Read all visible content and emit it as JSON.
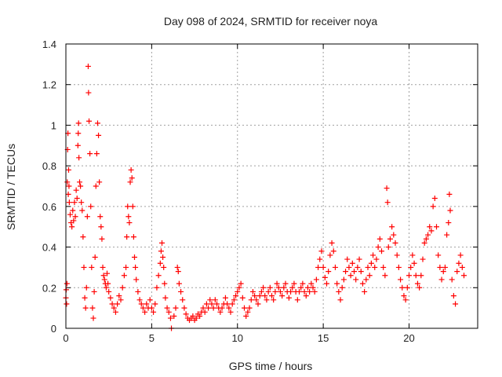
{
  "chart_data": {
    "type": "scatter",
    "title": "Day 098 of 2024, SRMTID for receiver noya",
    "xlabel": "GPS time / hours",
    "ylabel": "SRMTID / TECUs",
    "xlim": [
      0,
      24
    ],
    "ylim": [
      0,
      1.4
    ],
    "xticks": [
      0,
      5,
      10,
      15,
      20
    ],
    "xtick_labels": [
      "0",
      "5",
      "10",
      "15",
      "20"
    ],
    "yticks": [
      0,
      0.2,
      0.4,
      0.6,
      0.8,
      1.0,
      1.2,
      1.4
    ],
    "ytick_labels": [
      "0",
      "0.2",
      "0.4",
      "0.6",
      "0.8",
      "1",
      "1.2",
      "1.4"
    ],
    "grid": true,
    "marker": "+",
    "series_color": "#ff0000",
    "series": [
      {
        "name": "noya",
        "points": [
          [
            0.0,
            0.15
          ],
          [
            0.02,
            0.19
          ],
          [
            0.04,
            0.12
          ],
          [
            0.06,
            0.22
          ],
          [
            0.08,
            0.72
          ],
          [
            0.1,
            0.88
          ],
          [
            0.12,
            0.96
          ],
          [
            0.14,
            0.66
          ],
          [
            0.16,
            0.78
          ],
          [
            0.18,
            0.7
          ],
          [
            0.2,
            0.62
          ],
          [
            0.25,
            0.56
          ],
          [
            0.3,
            0.52
          ],
          [
            0.35,
            0.5
          ],
          [
            0.4,
            0.58
          ],
          [
            0.45,
            0.53
          ],
          [
            0.5,
            0.62
          ],
          [
            0.55,
            0.55
          ],
          [
            0.6,
            0.68
          ],
          [
            0.65,
            0.64
          ],
          [
            0.7,
            0.9
          ],
          [
            0.72,
            0.96
          ],
          [
            0.74,
            1.01
          ],
          [
            0.76,
            0.84
          ],
          [
            0.8,
            0.72
          ],
          [
            0.85,
            0.7
          ],
          [
            0.9,
            0.62
          ],
          [
            0.95,
            0.58
          ],
          [
            1.0,
            0.45
          ],
          [
            1.05,
            0.3
          ],
          [
            1.1,
            0.15
          ],
          [
            1.15,
            0.1
          ],
          [
            1.2,
            0.2
          ],
          [
            1.25,
            0.55
          ],
          [
            1.3,
            1.29
          ],
          [
            1.32,
            1.16
          ],
          [
            1.35,
            1.02
          ],
          [
            1.4,
            0.86
          ],
          [
            1.45,
            0.6
          ],
          [
            1.5,
            0.3
          ],
          [
            1.55,
            0.1
          ],
          [
            1.6,
            0.05
          ],
          [
            1.65,
            0.18
          ],
          [
            1.7,
            0.35
          ],
          [
            1.75,
            0.7
          ],
          [
            1.8,
            0.86
          ],
          [
            1.85,
            1.01
          ],
          [
            1.9,
            0.95
          ],
          [
            1.95,
            0.72
          ],
          [
            2.0,
            0.55
          ],
          [
            2.05,
            0.5
          ],
          [
            2.1,
            0.44
          ],
          [
            2.15,
            0.3
          ],
          [
            2.2,
            0.26
          ],
          [
            2.25,
            0.24
          ],
          [
            2.3,
            0.22
          ],
          [
            2.35,
            0.2
          ],
          [
            2.4,
            0.27
          ],
          [
            2.45,
            0.22
          ],
          [
            2.5,
            0.18
          ],
          [
            2.6,
            0.15
          ],
          [
            2.7,
            0.12
          ],
          [
            2.8,
            0.1
          ],
          [
            2.9,
            0.08
          ],
          [
            3.0,
            0.12
          ],
          [
            3.1,
            0.16
          ],
          [
            3.2,
            0.14
          ],
          [
            3.3,
            0.2
          ],
          [
            3.4,
            0.26
          ],
          [
            3.5,
            0.3
          ],
          [
            3.55,
            0.45
          ],
          [
            3.6,
            0.6
          ],
          [
            3.65,
            0.55
          ],
          [
            3.7,
            0.52
          ],
          [
            3.75,
            0.72
          ],
          [
            3.8,
            0.78
          ],
          [
            3.85,
            0.74
          ],
          [
            3.9,
            0.6
          ],
          [
            3.95,
            0.45
          ],
          [
            4.0,
            0.35
          ],
          [
            4.05,
            0.3
          ],
          [
            4.1,
            0.24
          ],
          [
            4.2,
            0.18
          ],
          [
            4.3,
            0.14
          ],
          [
            4.4,
            0.12
          ],
          [
            4.5,
            0.1
          ],
          [
            4.6,
            0.08
          ],
          [
            4.7,
            0.12
          ],
          [
            4.8,
            0.1
          ],
          [
            4.9,
            0.14
          ],
          [
            5.0,
            0.1
          ],
          [
            5.1,
            0.08
          ],
          [
            5.2,
            0.12
          ],
          [
            5.3,
            0.2
          ],
          [
            5.4,
            0.26
          ],
          [
            5.5,
            0.32
          ],
          [
            5.55,
            0.38
          ],
          [
            5.6,
            0.42
          ],
          [
            5.65,
            0.35
          ],
          [
            5.7,
            0.3
          ],
          [
            5.75,
            0.22
          ],
          [
            5.8,
            0.15
          ],
          [
            5.9,
            0.1
          ],
          [
            6.0,
            0.08
          ],
          [
            6.1,
            0.05
          ],
          [
            6.15,
            0.0
          ],
          [
            6.3,
            0.06
          ],
          [
            6.4,
            0.1
          ],
          [
            6.5,
            0.3
          ],
          [
            6.55,
            0.28
          ],
          [
            6.6,
            0.22
          ],
          [
            6.7,
            0.18
          ],
          [
            6.8,
            0.14
          ],
          [
            6.9,
            0.1
          ],
          [
            7.0,
            0.07
          ],
          [
            7.1,
            0.05
          ],
          [
            7.2,
            0.04
          ],
          [
            7.3,
            0.05
          ],
          [
            7.4,
            0.06
          ],
          [
            7.5,
            0.04
          ],
          [
            7.6,
            0.05
          ],
          [
            7.7,
            0.07
          ],
          [
            7.8,
            0.06
          ],
          [
            7.9,
            0.08
          ],
          [
            8.0,
            0.1
          ],
          [
            8.1,
            0.08
          ],
          [
            8.2,
            0.12
          ],
          [
            8.3,
            0.1
          ],
          [
            8.4,
            0.14
          ],
          [
            8.5,
            0.12
          ],
          [
            8.6,
            0.1
          ],
          [
            8.7,
            0.14
          ],
          [
            8.8,
            0.12
          ],
          [
            8.9,
            0.1
          ],
          [
            9.0,
            0.08
          ],
          [
            9.1,
            0.1
          ],
          [
            9.2,
            0.12
          ],
          [
            9.3,
            0.15
          ],
          [
            9.4,
            0.12
          ],
          [
            9.5,
            0.1
          ],
          [
            9.6,
            0.08
          ],
          [
            9.7,
            0.12
          ],
          [
            9.8,
            0.14
          ],
          [
            9.9,
            0.16
          ],
          [
            10.0,
            0.18
          ],
          [
            10.1,
            0.2
          ],
          [
            10.2,
            0.22
          ],
          [
            10.3,
            0.15
          ],
          [
            10.4,
            0.1
          ],
          [
            10.5,
            0.06
          ],
          [
            10.6,
            0.08
          ],
          [
            10.7,
            0.1
          ],
          [
            10.8,
            0.14
          ],
          [
            10.9,
            0.18
          ],
          [
            11.0,
            0.16
          ],
          [
            11.1,
            0.14
          ],
          [
            11.2,
            0.12
          ],
          [
            11.3,
            0.16
          ],
          [
            11.4,
            0.18
          ],
          [
            11.5,
            0.2
          ],
          [
            11.6,
            0.16
          ],
          [
            11.7,
            0.14
          ],
          [
            11.8,
            0.18
          ],
          [
            11.9,
            0.2
          ],
          [
            12.0,
            0.16
          ],
          [
            12.1,
            0.14
          ],
          [
            12.2,
            0.18
          ],
          [
            12.3,
            0.22
          ],
          [
            12.4,
            0.2
          ],
          [
            12.5,
            0.18
          ],
          [
            12.6,
            0.16
          ],
          [
            12.7,
            0.2
          ],
          [
            12.8,
            0.22
          ],
          [
            12.9,
            0.18
          ],
          [
            13.0,
            0.15
          ],
          [
            13.1,
            0.18
          ],
          [
            13.2,
            0.2
          ],
          [
            13.3,
            0.22
          ],
          [
            13.4,
            0.18
          ],
          [
            13.5,
            0.14
          ],
          [
            13.6,
            0.18
          ],
          [
            13.7,
            0.2
          ],
          [
            13.8,
            0.22
          ],
          [
            13.9,
            0.18
          ],
          [
            14.0,
            0.16
          ],
          [
            14.1,
            0.2
          ],
          [
            14.2,
            0.18
          ],
          [
            14.3,
            0.22
          ],
          [
            14.4,
            0.2
          ],
          [
            14.5,
            0.18
          ],
          [
            14.6,
            0.24
          ],
          [
            14.7,
            0.3
          ],
          [
            14.8,
            0.34
          ],
          [
            14.9,
            0.38
          ],
          [
            15.0,
            0.3
          ],
          [
            15.1,
            0.25
          ],
          [
            15.2,
            0.22
          ],
          [
            15.3,
            0.28
          ],
          [
            15.4,
            0.36
          ],
          [
            15.5,
            0.42
          ],
          [
            15.6,
            0.38
          ],
          [
            15.7,
            0.3
          ],
          [
            15.8,
            0.22
          ],
          [
            15.9,
            0.18
          ],
          [
            16.0,
            0.14
          ],
          [
            16.1,
            0.2
          ],
          [
            16.2,
            0.24
          ],
          [
            16.3,
            0.28
          ],
          [
            16.4,
            0.34
          ],
          [
            16.5,
            0.3
          ],
          [
            16.6,
            0.26
          ],
          [
            16.7,
            0.32
          ],
          [
            16.8,
            0.28
          ],
          [
            16.9,
            0.24
          ],
          [
            17.0,
            0.3
          ],
          [
            17.1,
            0.34
          ],
          [
            17.2,
            0.28
          ],
          [
            17.3,
            0.22
          ],
          [
            17.4,
            0.18
          ],
          [
            17.5,
            0.24
          ],
          [
            17.6,
            0.3
          ],
          [
            17.7,
            0.26
          ],
          [
            17.8,
            0.32
          ],
          [
            17.9,
            0.36
          ],
          [
            18.0,
            0.3
          ],
          [
            18.1,
            0.34
          ],
          [
            18.2,
            0.4
          ],
          [
            18.3,
            0.44
          ],
          [
            18.4,
            0.38
          ],
          [
            18.5,
            0.3
          ],
          [
            18.6,
            0.26
          ],
          [
            18.7,
            0.69
          ],
          [
            18.75,
            0.62
          ],
          [
            18.8,
            0.4
          ],
          [
            18.9,
            0.44
          ],
          [
            19.0,
            0.5
          ],
          [
            19.1,
            0.46
          ],
          [
            19.2,
            0.42
          ],
          [
            19.3,
            0.36
          ],
          [
            19.4,
            0.3
          ],
          [
            19.5,
            0.24
          ],
          [
            19.6,
            0.2
          ],
          [
            19.7,
            0.16
          ],
          [
            19.8,
            0.14
          ],
          [
            19.9,
            0.2
          ],
          [
            20.0,
            0.26
          ],
          [
            20.1,
            0.3
          ],
          [
            20.2,
            0.36
          ],
          [
            20.3,
            0.32
          ],
          [
            20.4,
            0.26
          ],
          [
            20.5,
            0.22
          ],
          [
            20.6,
            0.2
          ],
          [
            20.7,
            0.26
          ],
          [
            20.8,
            0.34
          ],
          [
            20.9,
            0.42
          ],
          [
            21.0,
            0.44
          ],
          [
            21.1,
            0.46
          ],
          [
            21.2,
            0.5
          ],
          [
            21.3,
            0.48
          ],
          [
            21.4,
            0.6
          ],
          [
            21.5,
            0.64
          ],
          [
            21.6,
            0.5
          ],
          [
            21.7,
            0.36
          ],
          [
            21.8,
            0.3
          ],
          [
            21.9,
            0.24
          ],
          [
            22.0,
            0.28
          ],
          [
            22.1,
            0.3
          ],
          [
            22.2,
            0.46
          ],
          [
            22.3,
            0.52
          ],
          [
            22.35,
            0.66
          ],
          [
            22.4,
            0.58
          ],
          [
            22.5,
            0.24
          ],
          [
            22.6,
            0.16
          ],
          [
            22.7,
            0.12
          ],
          [
            22.8,
            0.28
          ],
          [
            22.9,
            0.32
          ],
          [
            23.0,
            0.36
          ],
          [
            23.1,
            0.3
          ],
          [
            23.2,
            0.26
          ]
        ]
      }
    ]
  }
}
